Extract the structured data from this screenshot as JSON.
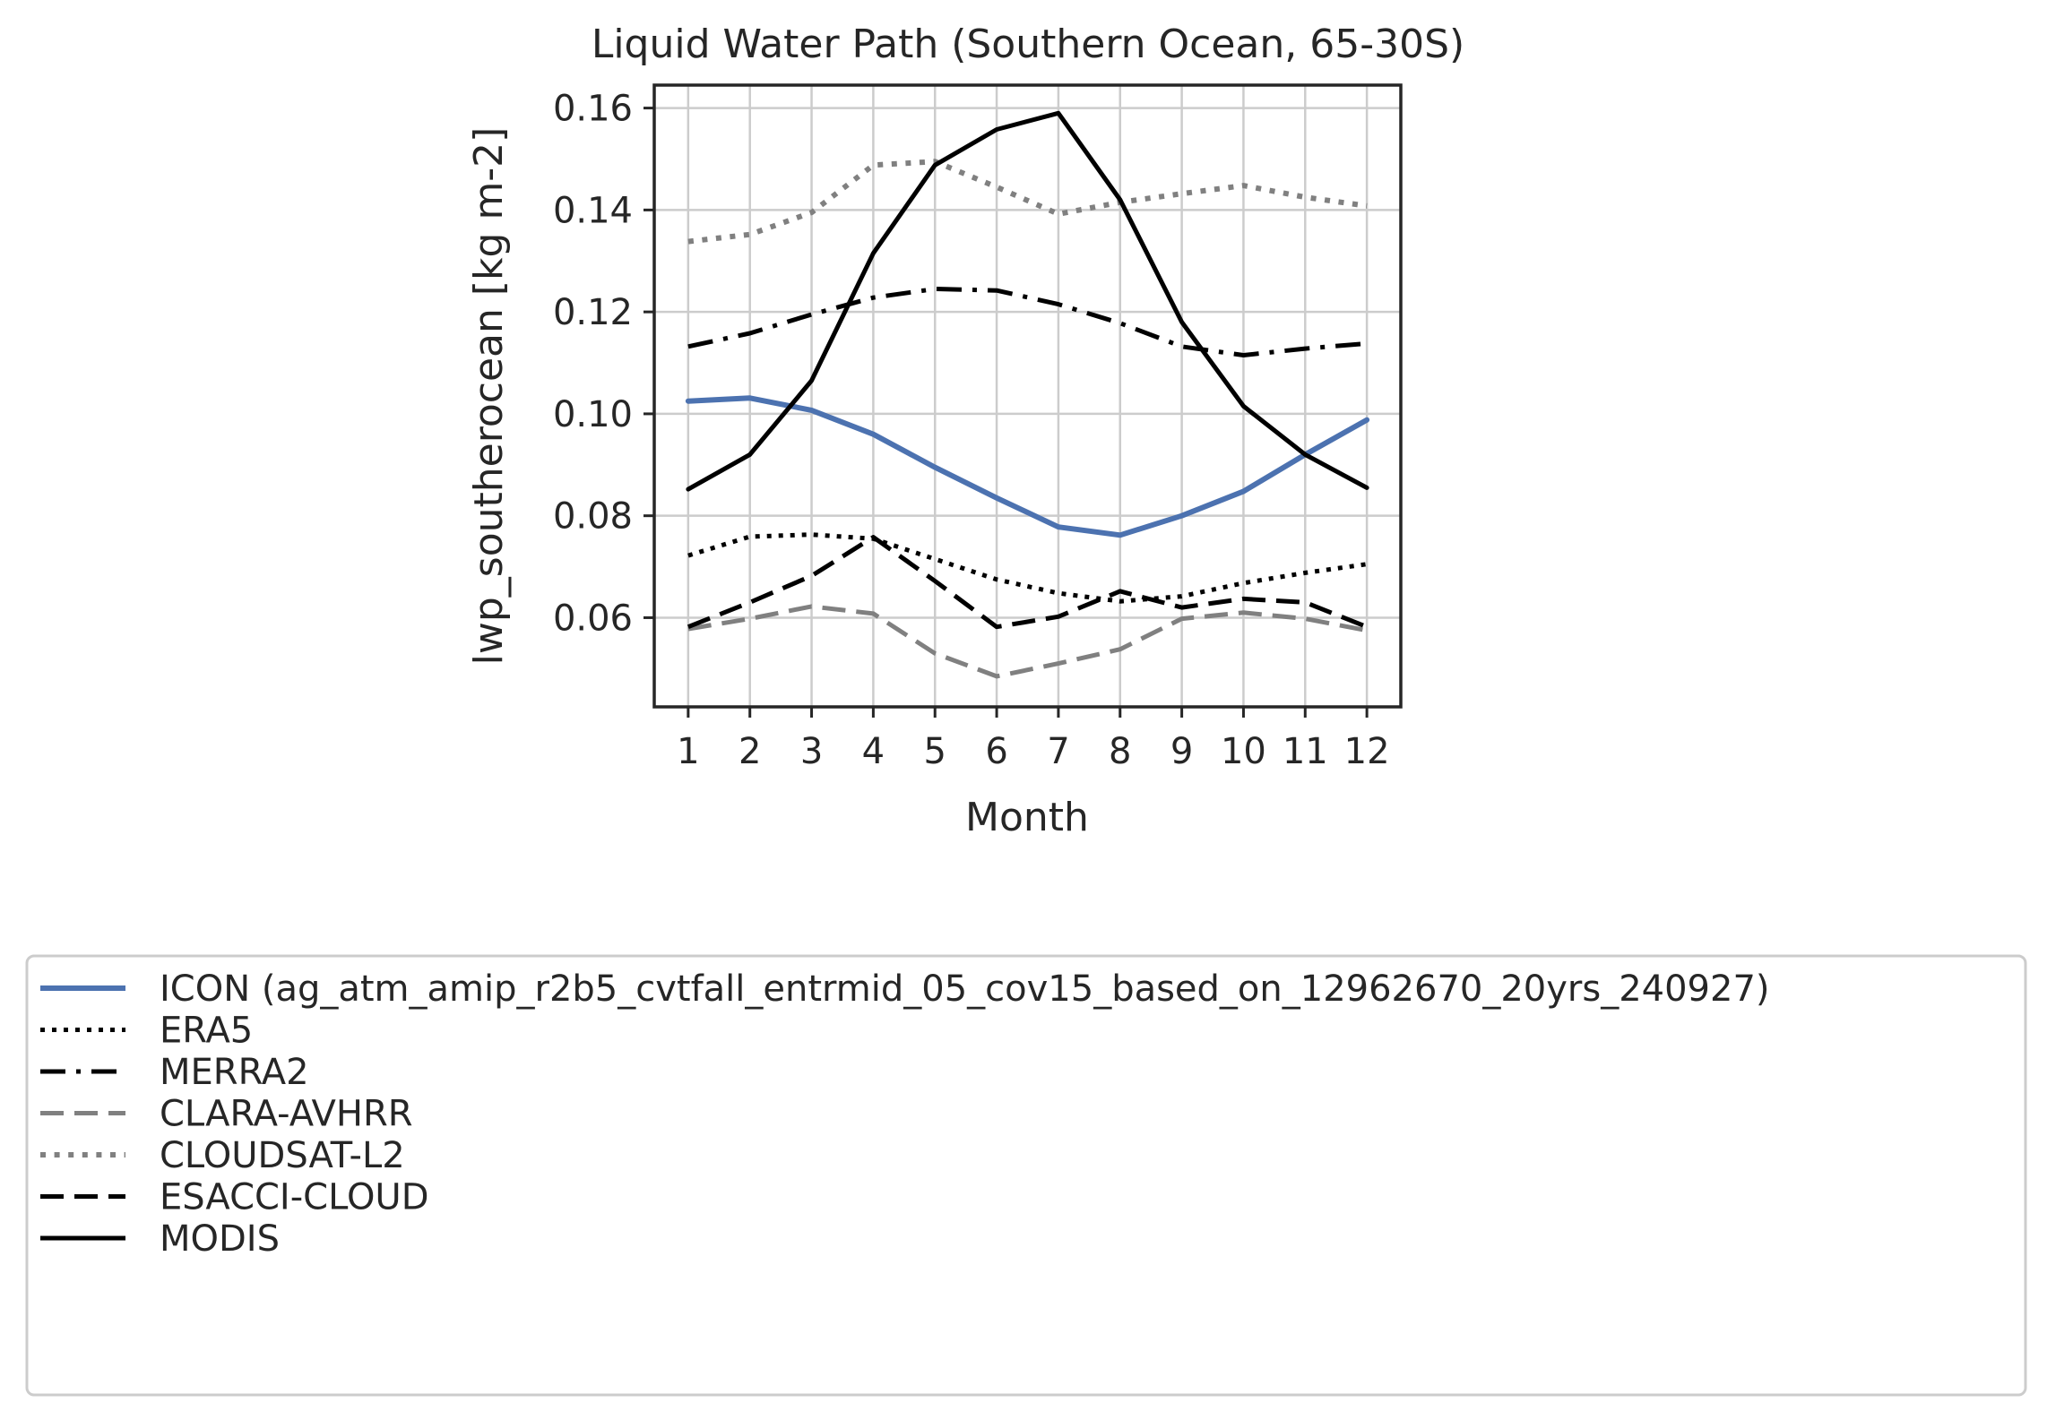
{
  "chart_data": {
    "type": "line",
    "title": "Liquid Water Path (Southern Ocean, 65-30S)",
    "xlabel": "Month",
    "ylabel": "lwp_southerocean [kg m-2]",
    "x": [
      1,
      2,
      3,
      4,
      5,
      6,
      7,
      8,
      9,
      10,
      11,
      12
    ],
    "xlim": [
      0.45,
      12.55
    ],
    "ylim": [
      0.0425,
      0.1645
    ],
    "yticks": [
      0.06,
      0.08,
      0.1,
      0.12,
      0.14,
      0.16
    ],
    "ytick_labels": [
      "0.06",
      "0.08",
      "0.10",
      "0.12",
      "0.14",
      "0.16"
    ],
    "xtick_labels": [
      "1",
      "2",
      "3",
      "4",
      "5",
      "6",
      "7",
      "8",
      "9",
      "10",
      "11",
      "12"
    ],
    "grid": true,
    "legend_position": "below",
    "series": [
      {
        "name": "ICON (ag_atm_amip_r2b5_cvtfall_entrmid_05_cov15_based_on_12962670_20yrs_240927)",
        "values": [
          0.1025,
          0.1031,
          0.1007,
          0.096,
          0.0895,
          0.0835,
          0.0778,
          0.0762,
          0.08,
          0.0848,
          0.092,
          0.0988
        ],
        "color": "#4c72b0",
        "style": "solid",
        "width": 6
      },
      {
        "name": "ERA5",
        "values": [
          0.0722,
          0.0759,
          0.0763,
          0.0755,
          0.0715,
          0.0675,
          0.0648,
          0.0632,
          0.0642,
          0.0668,
          0.0688,
          0.0705
        ],
        "color": "#000000",
        "style": "dotted",
        "width": 5
      },
      {
        "name": "MERRA2",
        "values": [
          0.1132,
          0.1158,
          0.1195,
          0.1228,
          0.1245,
          0.1242,
          0.1215,
          0.1178,
          0.1132,
          0.1115,
          0.1128,
          0.1138
        ],
        "color": "#000000",
        "style": "dashdot",
        "width": 5
      },
      {
        "name": "CLARA-AVHRR",
        "values": [
          0.0578,
          0.0598,
          0.0622,
          0.0608,
          0.053,
          0.0485,
          0.051,
          0.0538,
          0.0598,
          0.061,
          0.0598,
          0.0575
        ],
        "color": "#808080",
        "style": "dashed",
        "width": 5
      },
      {
        "name": "CLOUDSAT-L2",
        "values": [
          0.1338,
          0.1352,
          0.1395,
          0.1488,
          0.1495,
          0.1445,
          0.1392,
          0.1415,
          0.1432,
          0.1448,
          0.1425,
          0.1408
        ],
        "color": "#808080",
        "style": "dotted",
        "width": 6
      },
      {
        "name": "ESACCI-CLOUD",
        "values": [
          0.0582,
          0.063,
          0.0682,
          0.0758,
          0.0672,
          0.0582,
          0.0602,
          0.0652,
          0.062,
          0.0637,
          0.063,
          0.0582
        ],
        "color": "#000000",
        "style": "dashed",
        "width": 5
      },
      {
        "name": "MODIS",
        "values": [
          0.0852,
          0.092,
          0.1065,
          0.1315,
          0.1488,
          0.1558,
          0.159,
          0.142,
          0.118,
          0.1015,
          0.092,
          0.0855
        ],
        "color": "#000000",
        "style": "solid",
        "width": 5
      }
    ]
  }
}
